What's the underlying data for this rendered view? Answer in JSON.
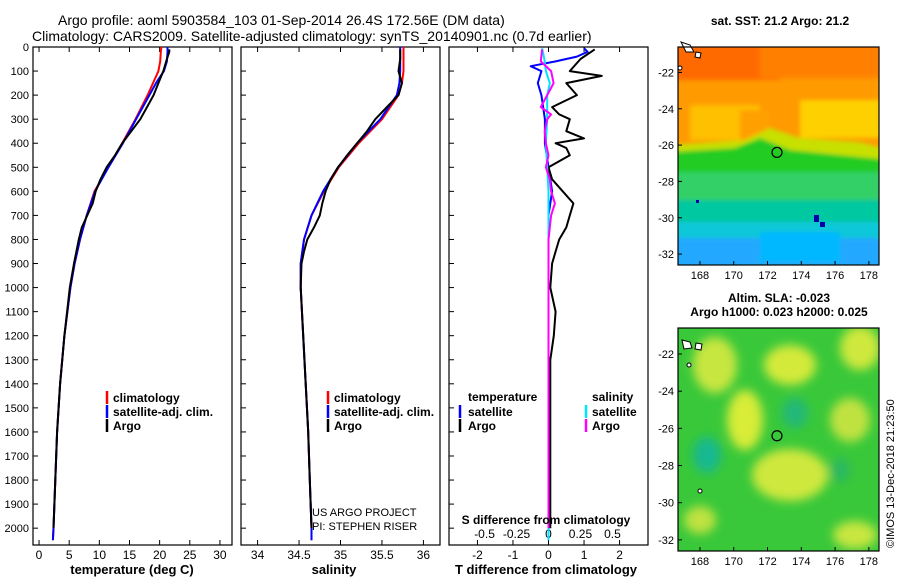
{
  "header": {
    "line1": "Argo profile: aoml 5903584_103 01-Sep-2014 26.4S 172.56E (DM data)",
    "line2": "Climatology: CARS2009. Satellite-adjusted climatology: synTS_20140901.nc (0.7d earlier)"
  },
  "colors": {
    "climatology": "#ff0000",
    "satellite": "#0000ff",
    "argo": "#000000",
    "sat_salinity": "#00e5ff",
    "argo_salinity": "#ff00ff"
  },
  "chart_data": [
    {
      "type": "line",
      "id": "temperature",
      "xlabel": "temperature (deg C)",
      "ylabel": "",
      "xlim": [
        -1,
        32
      ],
      "ylim": [
        2070,
        0
      ],
      "xticks": [
        0,
        5,
        10,
        15,
        20,
        25,
        30
      ],
      "xticklabels": [
        "0",
        "5",
        "10",
        "15",
        "20",
        "25",
        "30"
      ],
      "yticks": [
        0,
        100,
        200,
        300,
        400,
        500,
        600,
        700,
        800,
        900,
        1000,
        1100,
        1200,
        1300,
        1400,
        1500,
        1600,
        1700,
        1800,
        1900,
        2000
      ],
      "yticklabels": [
        "0",
        "100",
        "200",
        "300",
        "400",
        "500",
        "600",
        "700",
        "800",
        "900",
        "1000",
        "1100",
        "1200",
        "1300",
        "1400",
        "1500",
        "1600",
        "1700",
        "1800",
        "1900",
        "2000"
      ],
      "legend": [
        "climatology",
        "satellite-adj. clim.",
        "Argo"
      ],
      "series": [
        {
          "name": "climatology",
          "color": "#ff0000",
          "depth": [
            0,
            20,
            60,
            100,
            150,
            200,
            300,
            400,
            500,
            600,
            700,
            800,
            900,
            1000,
            1200,
            1400,
            1600,
            1800,
            2000,
            2050
          ],
          "values": [
            20.3,
            20.2,
            20.1,
            19.8,
            18.9,
            18.0,
            16.0,
            13.8,
            11.5,
            9.2,
            7.9,
            6.8,
            5.9,
            5.2,
            4.2,
            3.5,
            3.0,
            2.7,
            2.4,
            2.3
          ]
        },
        {
          "name": "satellite-adj. clim.",
          "color": "#0000ff",
          "depth": [
            0,
            20,
            60,
            100,
            150,
            200,
            300,
            400,
            500,
            600,
            700,
            800,
            900,
            1000,
            1200,
            1400,
            1600,
            1800,
            2000,
            2050
          ],
          "values": [
            21.3,
            21.3,
            21.2,
            20.7,
            19.4,
            18.3,
            16.1,
            13.9,
            11.5,
            9.3,
            7.9,
            6.8,
            5.9,
            5.2,
            4.2,
            3.5,
            3.0,
            2.7,
            2.4,
            2.3
          ]
        },
        {
          "name": "Argo",
          "color": "#000000",
          "depth": [
            10,
            20,
            50,
            100,
            150,
            200,
            250,
            300,
            350,
            400,
            450,
            500,
            550,
            600,
            650,
            700,
            750,
            800,
            900,
            1000,
            1200,
            1400,
            1600,
            1800,
            2000
          ],
          "values": [
            21.6,
            21.6,
            21.2,
            20.6,
            19.8,
            19.0,
            17.9,
            16.8,
            15.3,
            13.8,
            12.6,
            11.2,
            10.2,
            9.4,
            8.9,
            8.0,
            7.1,
            6.6,
            5.8,
            5.1,
            4.2,
            3.5,
            3.0,
            2.7,
            2.4
          ]
        }
      ]
    },
    {
      "type": "line",
      "id": "salinity",
      "xlabel": "salinity",
      "xlim": [
        33.8,
        36.2
      ],
      "ylim": [
        2070,
        0
      ],
      "xticks": [
        34,
        34.5,
        35,
        35.5,
        36
      ],
      "xticklabels": [
        "34",
        "34.5",
        "35",
        "35.5",
        "36"
      ],
      "legend": [
        "climatology",
        "satellite-adj. clim.",
        "Argo"
      ],
      "annotation": [
        "US ARGO PROJECT",
        "PI: STEPHEN RISER"
      ],
      "series": [
        {
          "name": "climatology",
          "color": "#ff0000",
          "depth": [
            0,
            50,
            100,
            150,
            200,
            300,
            400,
            500,
            600,
            700,
            800,
            900,
            1000,
            1200,
            1400,
            1600,
            1800,
            2000,
            2050
          ],
          "values": [
            35.76,
            35.76,
            35.76,
            35.74,
            35.7,
            35.5,
            35.22,
            34.98,
            34.8,
            34.65,
            34.56,
            34.52,
            34.52,
            34.55,
            34.58,
            34.61,
            34.63,
            34.65,
            34.65
          ]
        },
        {
          "name": "satellite-adj. clim.",
          "color": "#0000ff",
          "depth": [
            0,
            50,
            100,
            150,
            200,
            300,
            400,
            500,
            600,
            700,
            800,
            900,
            1000,
            1200,
            1400,
            1600,
            1800,
            2000,
            2050
          ],
          "values": [
            35.72,
            35.72,
            35.72,
            35.71,
            35.68,
            35.48,
            35.2,
            34.97,
            34.79,
            34.65,
            34.56,
            34.52,
            34.52,
            34.55,
            34.58,
            34.61,
            34.63,
            34.65,
            34.65
          ]
        },
        {
          "name": "Argo",
          "color": "#000000",
          "depth": [
            10,
            50,
            100,
            150,
            200,
            250,
            300,
            350,
            400,
            450,
            500,
            550,
            600,
            650,
            700,
            750,
            800,
            850,
            900,
            1000,
            1200,
            1400,
            1600,
            1800,
            2000
          ],
          "values": [
            35.72,
            35.72,
            35.7,
            35.74,
            35.7,
            35.56,
            35.42,
            35.32,
            35.2,
            35.08,
            34.97,
            34.88,
            34.82,
            34.78,
            34.75,
            34.68,
            34.6,
            34.56,
            34.53,
            34.52,
            34.55,
            34.58,
            34.61,
            34.63,
            34.65
          ]
        }
      ]
    },
    {
      "type": "line",
      "id": "difference",
      "xlabel": "T difference from climatology",
      "xlabel_top": "S difference from climatology",
      "xlim": [
        -2.8,
        2.8
      ],
      "ylim": [
        2070,
        0
      ],
      "xticks": [
        -2,
        -1,
        0,
        1,
        2
      ],
      "xticklabels": [
        "-2",
        "-1",
        "0",
        "1",
        "2"
      ],
      "s_ticks": [
        -0.5,
        -0.25,
        0,
        0.25,
        0.5
      ],
      "s_ticklabels": [
        "-0.5",
        "-0.25",
        "0",
        "0.25",
        "0.5"
      ],
      "legend_left_title": "temperature",
      "legend_right_title": "salinity",
      "legend_left": [
        "satellite",
        "Argo"
      ],
      "legend_right": [
        "satellite",
        "Argo"
      ],
      "series": [
        {
          "name": "temperature satellite",
          "color": "#0000ff",
          "depth": [
            5,
            20,
            40,
            60,
            80,
            100,
            150,
            200,
            300,
            400,
            500,
            600,
            700,
            800,
            900,
            1000,
            1200,
            1400,
            1600,
            1800,
            2000,
            2050
          ],
          "values": [
            1.0,
            1.1,
            0.8,
            0.2,
            -0.5,
            -0.2,
            -0.3,
            -0.2,
            -0.1,
            -0.1,
            0,
            0.1,
            0,
            0,
            0,
            0,
            0,
            0,
            0,
            0,
            0,
            0
          ]
        },
        {
          "name": "temperature Argo",
          "color": "#000000",
          "depth": [
            10,
            50,
            100,
            120,
            150,
            200,
            250,
            280,
            300,
            350,
            380,
            400,
            420,
            450,
            500,
            550,
            600,
            650,
            700,
            750,
            800,
            850,
            900,
            1000,
            1100,
            1200,
            1300,
            1400,
            1500,
            1600,
            1700,
            1800,
            1900,
            2000
          ],
          "values": [
            1.3,
            0.9,
            0.6,
            1.5,
            0.5,
            0.8,
            0.1,
            0.3,
            0.6,
            0.5,
            1.0,
            0.2,
            0.5,
            0.6,
            0,
            0.1,
            0.4,
            0.7,
            0.6,
            0.5,
            0.3,
            0.2,
            0.1,
            0.05,
            0.2,
            0.15,
            0.05,
            0.05,
            0.05,
            0.05,
            0.05,
            0.05,
            0.05,
            0.05
          ]
        },
        {
          "name": "salinity satellite",
          "color": "#00e5ff",
          "depth": [
            5,
            30,
            60,
            100,
            150,
            200,
            300,
            400,
            500,
            600,
            700,
            800,
            1000,
            1200,
            1400,
            1600,
            1800,
            2000,
            2050
          ],
          "values": [
            -0.05,
            -0.04,
            -0.03,
            -0.02,
            0.01,
            -0.01,
            -0.01,
            -0.02,
            -0.01,
            0,
            0,
            0,
            0,
            0,
            0,
            0,
            0,
            0,
            0
          ]
        },
        {
          "name": "salinity Argo",
          "color": "#ff00ff",
          "depth": [
            10,
            60,
            100,
            150,
            200,
            250,
            280,
            300,
            350,
            400,
            450,
            500,
            550,
            600,
            650,
            700,
            750,
            800,
            850,
            900,
            1000,
            1200,
            1400,
            1600,
            1800,
            2000
          ],
          "values": [
            -0.05,
            -0.06,
            0.02,
            0.04,
            -0.01,
            -0.06,
            0.02,
            -0.01,
            -0.03,
            -0.02,
            0,
            -0.02,
            0.01,
            0.02,
            0.05,
            0.02,
            0.01,
            0,
            0,
            0,
            0,
            0,
            0,
            0,
            0,
            0
          ]
        }
      ]
    },
    {
      "type": "heatmap",
      "id": "sst-map",
      "title": "sat. SST: 21.2 Argo: 21.2",
      "xlim": [
        166.7,
        178.6
      ],
      "ylim": [
        -32.6,
        -20.6
      ],
      "xticks": [
        168,
        170,
        172,
        174,
        176,
        178
      ],
      "xticklabels": [
        "168",
        "170",
        "172",
        "174",
        "176",
        "178"
      ],
      "yticks": [
        -22,
        -24,
        -26,
        -28,
        -30,
        -32
      ],
      "yticklabels": [
        "-22",
        "-24",
        "-26",
        "-28",
        "-30",
        "-32"
      ],
      "profile_location": {
        "lon": 172.56,
        "lat": -26.4
      }
    },
    {
      "type": "heatmap",
      "id": "sla-map",
      "title": "Altim. SLA: -0.023",
      "subtitle": "Argo h1000: 0.023 h2000: 0.025",
      "xlim": [
        166.7,
        178.6
      ],
      "ylim": [
        -32.6,
        -20.6
      ],
      "xticks": [
        168,
        170,
        172,
        174,
        176,
        178
      ],
      "xticklabels": [
        "168",
        "170",
        "172",
        "174",
        "176",
        "178"
      ],
      "yticks": [
        -22,
        -24,
        -26,
        -28,
        -30,
        -32
      ],
      "yticklabels": [
        "-22",
        "-24",
        "-26",
        "-28",
        "-30",
        "-32"
      ],
      "profile_location": {
        "lon": 172.56,
        "lat": -26.4
      }
    }
  ],
  "footer": {
    "credit": "©IMOS 13-Dec-2018 21:23:50"
  }
}
